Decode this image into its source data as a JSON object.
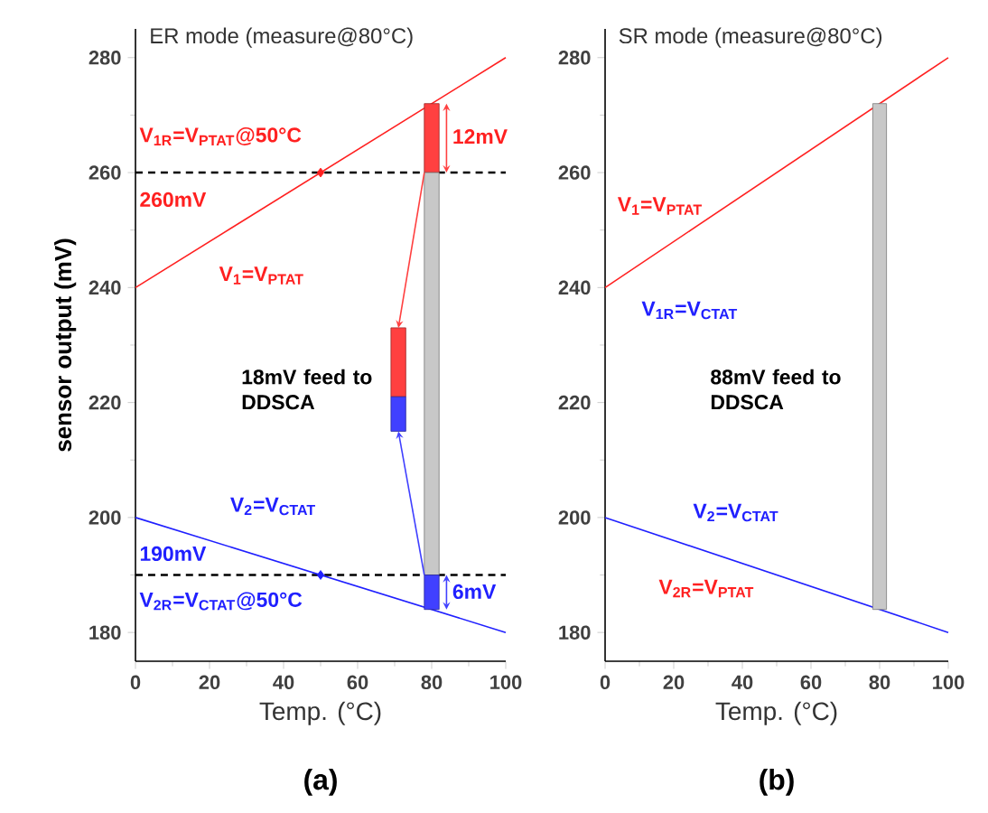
{
  "chart_data": [
    {
      "type": "line",
      "title": "ER mode (measure@80°C)",
      "xlabel": "Temp. (°C)",
      "ylabel": "sensor output (mV)",
      "xlim": [
        0,
        100
      ],
      "ylim": [
        175,
        285
      ],
      "xticks": [
        0,
        20,
        40,
        60,
        80,
        100
      ],
      "yticks": [
        180,
        200,
        220,
        240,
        260,
        280
      ],
      "series": [
        {
          "color": "#ff2020",
          "x": [
            0,
            100
          ],
          "values": [
            240,
            280
          ]
        },
        {
          "color": "#2020ff",
          "x": [
            0,
            100
          ],
          "values": [
            200,
            180
          ]
        },
        {
          "type": "scatter",
          "marker": "diamond",
          "color": "#ff2020",
          "x": [
            50
          ],
          "values": [
            260
          ]
        },
        {
          "type": "scatter",
          "marker": "diamond",
          "color": "#2020ff",
          "x": [
            50
          ],
          "values": [
            190
          ]
        },
        {
          "type": "bar",
          "color": "#ff4040",
          "x": [
            71
          ],
          "base": [
            221
          ],
          "values": [
            12
          ]
        },
        {
          "type": "bar",
          "color": "#4040ff",
          "x": [
            71
          ],
          "base": [
            215
          ],
          "values": [
            6
          ]
        },
        {
          "type": "bar",
          "color": "#ff4040",
          "x": [
            80
          ],
          "base": [
            260
          ],
          "values": [
            12
          ]
        },
        {
          "type": "bar",
          "color": "#c8c8c8",
          "x": [
            80
          ],
          "base": [
            190
          ],
          "values": [
            70
          ]
        },
        {
          "type": "bar",
          "color": "#4040ff",
          "x": [
            80
          ],
          "base": [
            184
          ],
          "values": [
            6
          ]
        }
      ],
      "ref_lines": [
        {
          "axis": "y",
          "value": 260,
          "color": "#000000",
          "line_style": "dashed"
        },
        {
          "axis": "y",
          "value": 190,
          "color": "#000000",
          "line_style": "dashed"
        }
      ],
      "annotations": [
        "V$_{1R}$=V$_{PTAT}$@50°C",
        "260mV",
        "V$_{1}$=V$_{PTAT}$",
        "18mV feed to DDSCA",
        "V$_{2}$=V$_{CTAT}$",
        "190mV",
        "V$_{2R}$=V$_{CTAT}$@50°C",
        "12mV",
        "6mV",
        "(a)"
      ]
    },
    {
      "type": "line",
      "title": "SR mode (measure@80°C)",
      "xlabel": "Temp. (°C)",
      "xlim": [
        0,
        100
      ],
      "ylim": [
        175,
        285
      ],
      "xticks": [
        0,
        20,
        40,
        60,
        80,
        100
      ],
      "yticks": [
        180,
        200,
        220,
        240,
        260,
        280
      ],
      "series": [
        {
          "color": "#ff2020",
          "x": [
            0,
            100
          ],
          "values": [
            240,
            280
          ]
        },
        {
          "color": "#2020ff",
          "x": [
            0,
            100
          ],
          "values": [
            200,
            180
          ]
        },
        {
          "type": "bar",
          "color": "#c8c8c8",
          "x": [
            80
          ],
          "base": [
            184
          ],
          "values": [
            88
          ]
        }
      ],
      "annotations": [
        "V$_{1}$=V$_{PTAT}$",
        "V$_{1R}$=V$_{CTAT}$",
        "88mV feed to DDSCA",
        "V$_{2}$=V$_{CTAT}$",
        "V$_{2R}$=V$_{PTAT}$",
        "(b)"
      ]
    }
  ]
}
